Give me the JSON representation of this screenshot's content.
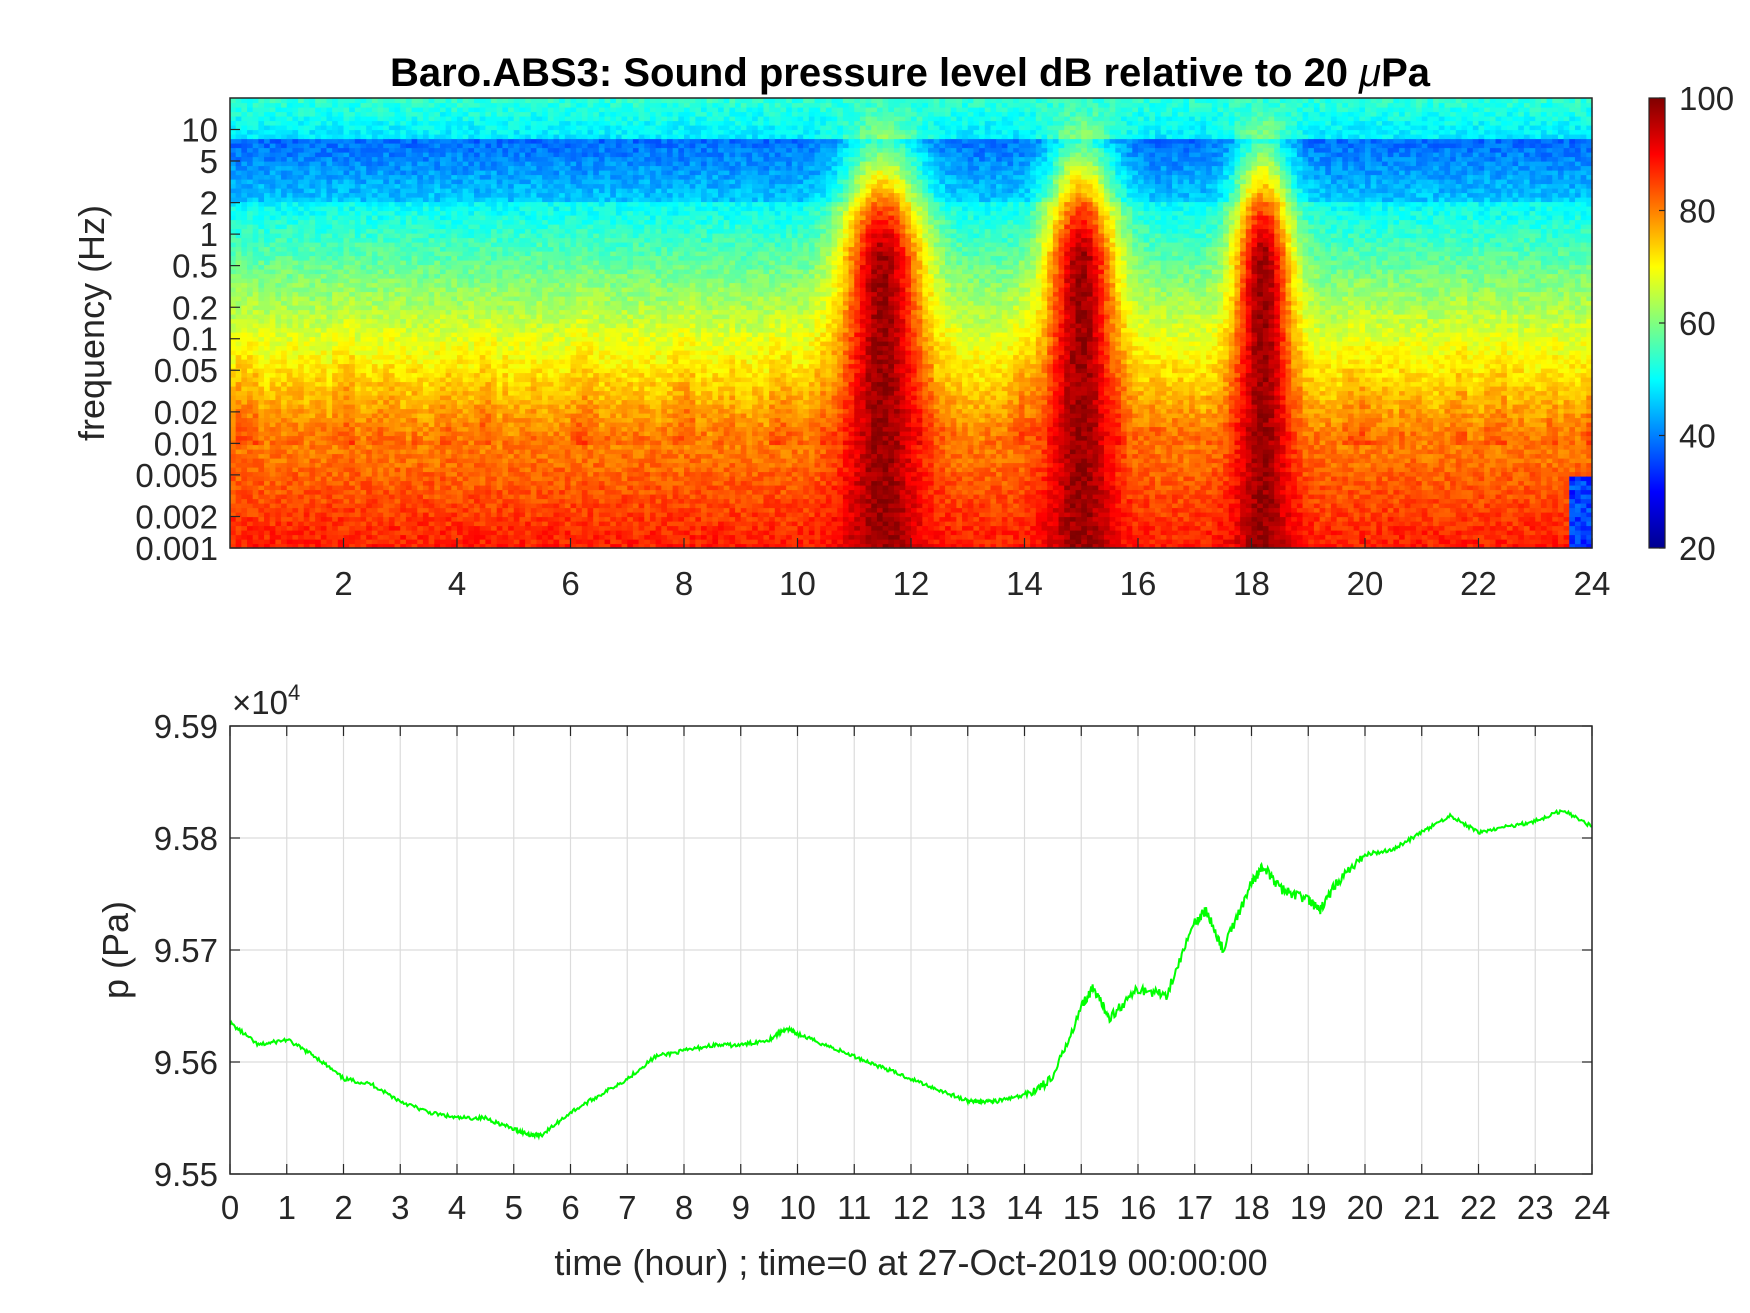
{
  "chart_data": [
    {
      "type": "heatmap",
      "title_main": "Baro.ABS3: Sound pressure level dB relative to 20 ",
      "title_mu": "μ",
      "title_unit": "Pa",
      "ylabel": "frequency (Hz)",
      "xlabel": "",
      "x_range": [
        0,
        24
      ],
      "x_ticks": [
        "2",
        "4",
        "6",
        "8",
        "10",
        "12",
        "14",
        "16",
        "18",
        "20",
        "22",
        "24"
      ],
      "y_scale": "log",
      "y_range": [
        0.001,
        20
      ],
      "y_ticks": [
        "0.001",
        "0.002",
        "0.005",
        "0.01",
        "0.02",
        "0.05",
        "0.1",
        "0.2",
        "0.5",
        "1",
        "2",
        "5",
        "10"
      ],
      "y_tick_values": [
        0.001,
        0.002,
        0.005,
        0.01,
        0.02,
        0.05,
        0.1,
        0.2,
        0.5,
        1,
        2,
        5,
        10
      ],
      "colorbar": {
        "colormap": "jet",
        "range": [
          20,
          100
        ],
        "ticks": [
          "20",
          "40",
          "60",
          "80",
          "100"
        ]
      },
      "grid": false,
      "bursts": [
        {
          "center_hour": 11.5,
          "width_hour": 0.7,
          "level_db": 98
        },
        {
          "center_hour": 15.0,
          "width_hour": 0.6,
          "level_db": 98
        },
        {
          "center_hour": 18.2,
          "width_hour": 0.5,
          "level_db": 96
        }
      ]
    },
    {
      "type": "line",
      "xlabel": "time (hour) ; time=0 at 27-Oct-2019 00:00:00",
      "ylabel": "p (Pa)",
      "y_exponent_prefix": "×10",
      "y_exponent": "4",
      "x_range": [
        0,
        24
      ],
      "y_range": [
        9.55,
        9.59
      ],
      "x_ticks": [
        "0",
        "1",
        "2",
        "3",
        "4",
        "5",
        "6",
        "7",
        "8",
        "9",
        "10",
        "11",
        "12",
        "13",
        "14",
        "15",
        "16",
        "17",
        "18",
        "19",
        "20",
        "21",
        "22",
        "23",
        "24"
      ],
      "y_ticks": [
        "9.55",
        "9.56",
        "9.57",
        "9.58",
        "9.59"
      ],
      "y_tick_values": [
        9.55,
        9.56,
        9.57,
        9.58,
        9.59
      ],
      "grid": true,
      "series": [
        {
          "color": "#00ff00",
          "x": [
            0,
            0.5,
            1,
            1.5,
            2,
            2.5,
            3,
            3.5,
            4,
            4.5,
            5,
            5.3,
            5.5,
            6,
            6.5,
            7,
            7.5,
            8,
            8.5,
            9,
            9.5,
            9.8,
            10,
            10.5,
            11,
            11.5,
            12,
            12.5,
            13,
            13.2,
            13.5,
            14,
            14.5,
            15,
            15.2,
            15.5,
            16,
            16.5,
            17,
            17.2,
            17.5,
            18,
            18.2,
            18.5,
            19,
            19.2,
            19.5,
            20,
            20.5,
            21,
            21.5,
            22,
            22.5,
            23,
            23.5,
            24
          ],
          "y": [
            9.5635,
            9.5615,
            9.562,
            9.5605,
            9.5585,
            9.558,
            9.5565,
            9.5555,
            9.555,
            9.555,
            9.554,
            9.5535,
            9.5535,
            9.5555,
            9.557,
            9.5585,
            9.5605,
            9.561,
            9.5615,
            9.5615,
            9.562,
            9.563,
            9.5625,
            9.5615,
            9.5605,
            9.5595,
            9.5585,
            9.5575,
            9.5565,
            9.5565,
            9.5565,
            9.557,
            9.5585,
            9.565,
            9.5665,
            9.564,
            9.5665,
            9.566,
            9.5725,
            9.5735,
            9.57,
            9.576,
            9.5775,
            9.5755,
            9.5745,
            9.5735,
            9.576,
            9.5785,
            9.579,
            9.5805,
            9.582,
            9.5805,
            9.581,
            9.5815,
            9.5825,
            9.581
          ]
        }
      ]
    }
  ]
}
